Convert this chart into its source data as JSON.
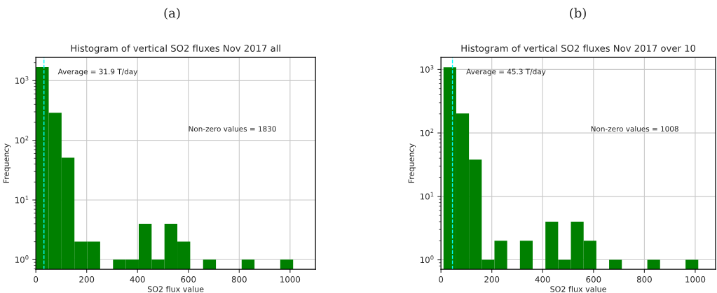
{
  "chart_data": [
    {
      "type": "histogram",
      "title": "Histogram of vertical SO2 fluxes Nov 2017 all",
      "xlabel": "SO2 flux value",
      "ylabel": "Frequency",
      "color": "#008000",
      "bins": [
        0,
        50.6,
        101.2,
        151.8,
        202.4,
        253,
        303.6,
        354.2,
        404.8,
        455.4,
        506,
        556.6,
        607.2,
        657.8,
        708.4,
        759,
        809.6,
        860.2,
        910.8,
        961.4,
        1012
      ],
      "values": [
        1690,
        290,
        51,
        2,
        2,
        null,
        1,
        1,
        4,
        1,
        4,
        2,
        null,
        1,
        null,
        null,
        1,
        null,
        null,
        1
      ],
      "log": "y",
      "xlim": [
        0,
        1100
      ],
      "xticks": [
        0,
        200,
        400,
        600,
        800,
        1000
      ],
      "ylim": [
        0.69,
        2450
      ],
      "yticks": [
        {
          "value": 1,
          "label": "10$^{0}$"
        },
        {
          "value": 10,
          "label": "10$^{1}$"
        },
        {
          "value": 100,
          "label": "10$^{2}$"
        },
        {
          "value": 1000,
          "label": "10$^{3}$"
        }
      ],
      "grid": true,
      "ref_lines": [
        {
          "axis": "x",
          "value": 31.9,
          "label": "Average = 31.9 T/day",
          "color": "#00ffff",
          "line_style": "dashed"
        }
      ],
      "annotations": [
        "(a)",
        "Non-zero values = 1830"
      ]
    },
    {
      "type": "histogram",
      "title": "Histogram of vertical SO2 fluxes Nov 2017 over 10",
      "xlabel": "SO2 flux value",
      "ylabel": "Frequency",
      "color": "#008000",
      "bins": [
        10,
        60.1,
        110.2,
        160.3,
        210.4,
        260.5,
        310.6,
        360.7,
        410.8,
        460.9,
        511,
        561.1,
        611.2,
        661.3,
        711.4,
        761.5,
        811.6,
        861.7,
        911.8,
        961.9,
        1012
      ],
      "values": [
        1080,
        203,
        38,
        1,
        2,
        null,
        2,
        null,
        4,
        1,
        4,
        2,
        null,
        1,
        null,
        null,
        1,
        null,
        null,
        1
      ],
      "log": "y",
      "xlim": [
        0,
        1080
      ],
      "xticks": [
        0,
        200,
        400,
        600,
        800,
        1000
      ],
      "ylim": [
        0.71,
        1550
      ],
      "yticks": [
        {
          "value": 1,
          "label": "10$^{0}$"
        },
        {
          "value": 10,
          "label": "10$^{1}$"
        },
        {
          "value": 100,
          "label": "10$^{2}$"
        },
        {
          "value": 1000,
          "label": "10$^{3}$"
        }
      ],
      "grid": true,
      "ref_lines": [
        {
          "axis": "x",
          "value": 45.3,
          "label": "Average = 45.3 T/day",
          "color": "#00ffff",
          "line_style": "dashed"
        }
      ],
      "annotations": [
        "(b)",
        "Non-zero values = 1008"
      ]
    }
  ]
}
